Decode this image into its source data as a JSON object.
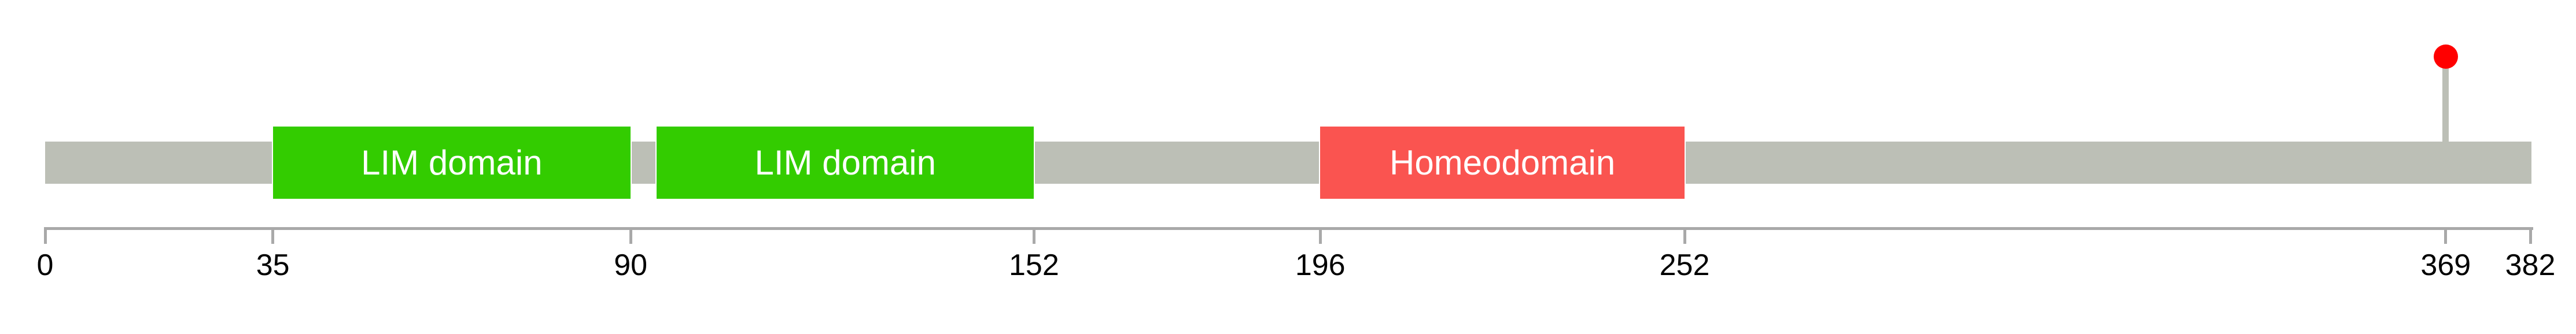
{
  "chart_data": {
    "type": "lollipop",
    "subtype": "protein-domain-diagram",
    "title": "",
    "axis": {
      "label": "",
      "min": 0,
      "max": 382,
      "ticks": [
        0,
        35,
        90,
        152,
        196,
        252,
        369,
        382
      ],
      "grid": false,
      "color": "#a9a9a9",
      "tick_label_color": "#000000"
    },
    "protein": {
      "length": 382,
      "backbone_color": "#bcbfb6"
    },
    "domains": [
      {
        "label": "LIM domain",
        "start": 35,
        "end": 90,
        "fill": "#33cc00",
        "text_color": "#ffffff"
      },
      {
        "label": "LIM domain",
        "start": 94,
        "end": 152,
        "fill": "#33cc00",
        "text_color": "#ffffff"
      },
      {
        "label": "Homeodomain",
        "start": 196,
        "end": 252,
        "fill": "#fa5450",
        "text_color": "#ffffff"
      }
    ],
    "mutations": [
      {
        "position": 369,
        "marker_color": "#ff0000",
        "stick_color": "#bcbfb6"
      }
    ]
  }
}
